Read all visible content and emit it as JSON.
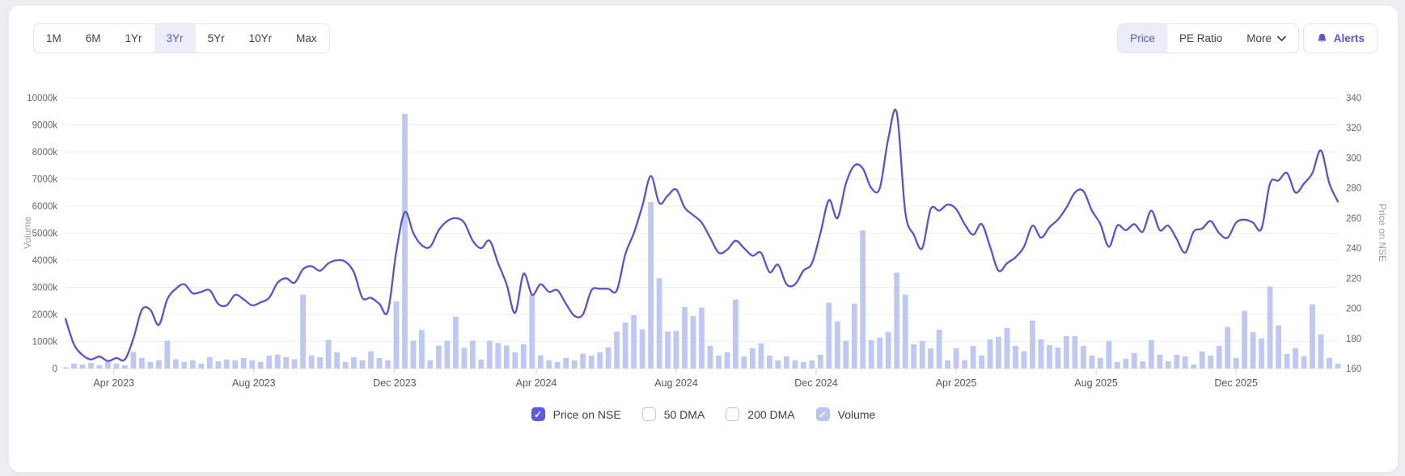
{
  "header": {
    "time_ranges": {
      "items": [
        "1M",
        "6M",
        "1Yr",
        "3Yr",
        "5Yr",
        "10Yr",
        "Max"
      ],
      "active": "3Yr"
    },
    "chart_tabs": {
      "items": [
        "Price",
        "PE Ratio",
        "More"
      ],
      "active": "Price"
    },
    "alerts_button": {
      "label": "Alerts",
      "icon": "bell"
    }
  },
  "legend": {
    "items": [
      {
        "label": "Price on NSE",
        "checked": true,
        "color": "#5f58e4"
      },
      {
        "label": "50 DMA",
        "checked": false,
        "color": ""
      },
      {
        "label": "200 DMA",
        "checked": false,
        "color": ""
      },
      {
        "label": "Volume",
        "checked": true,
        "color": "#b9c6f3"
      }
    ]
  },
  "chart_data": {
    "type": "line+bar",
    "title": "",
    "volume_axis": {
      "title": "Volume",
      "min": 0,
      "max": 10000,
      "tick_labels": [
        "0",
        "1000k",
        "2000k",
        "3000k",
        "4000k",
        "5000k",
        "6000k",
        "7000k",
        "8000k",
        "9000k",
        "10000k"
      ]
    },
    "price_axis": {
      "title": "Price on NSE",
      "min": 160,
      "max": 340,
      "tick_labels": [
        "160",
        "180",
        "200",
        "220",
        "240",
        "260",
        "280",
        "300",
        "320",
        "340"
      ]
    },
    "x_ticks": [
      {
        "label": "Apr 2023",
        "idx": 5.7
      },
      {
        "label": "Aug 2023",
        "idx": 22.2
      },
      {
        "label": "Dec 2023",
        "idx": 38.8
      },
      {
        "label": "Apr 2024",
        "idx": 55.5
      },
      {
        "label": "Aug 2024",
        "idx": 72
      },
      {
        "label": "Dec 2024",
        "idx": 88.5
      },
      {
        "label": "Apr 2025",
        "idx": 105
      },
      {
        "label": "Aug 2025",
        "idx": 121.5
      },
      {
        "label": "Dec 2025",
        "idx": 138
      }
    ],
    "x_range_note": "weekly points, Feb 2023 to Feb 2026",
    "price_series": [
      193,
      176,
      169,
      166,
      168,
      165,
      167,
      166,
      180,
      199,
      199,
      189,
      206,
      213,
      216,
      210,
      211,
      212,
      203,
      202,
      209,
      206,
      202,
      204,
      207,
      217,
      220,
      217,
      226,
      228,
      225,
      230,
      232,
      231,
      224,
      207,
      207,
      203,
      198,
      238,
      264,
      250,
      242,
      241,
      252,
      258,
      260,
      257,
      245,
      240,
      245,
      230,
      216,
      197,
      223,
      209,
      216,
      211,
      212,
      203,
      195,
      196,
      212,
      213,
      213,
      212,
      236,
      250,
      268,
      288,
      270,
      275,
      279,
      267,
      262,
      257,
      247,
      237,
      239,
      245,
      240,
      235,
      237,
      224,
      229,
      216,
      216,
      225,
      230,
      250,
      272,
      260,
      283,
      295,
      293,
      280,
      280,
      313,
      330,
      264,
      249,
      240,
      266,
      265,
      269,
      266,
      256,
      249,
      256,
      241,
      225,
      230,
      234,
      241,
      255,
      247,
      254,
      259,
      267,
      277,
      278,
      265,
      256,
      241,
      255,
      252,
      256,
      251,
      265,
      252,
      255,
      246,
      237,
      251,
      253,
      258,
      250,
      247,
      257,
      259,
      257,
      253,
      283,
      285,
      290,
      277,
      283,
      290,
      305,
      283,
      271
    ],
    "volume_series_k": [
      50,
      180,
      150,
      210,
      120,
      270,
      180,
      120,
      610,
      390,
      240,
      300,
      1030,
      340,
      240,
      300,
      180,
      420,
      270,
      330,
      300,
      390,
      300,
      240,
      480,
      520,
      420,
      340,
      2730,
      480,
      420,
      1060,
      600,
      240,
      420,
      300,
      640,
      390,
      300,
      2480,
      9400,
      1030,
      1420,
      300,
      850,
      1030,
      1910,
      760,
      1030,
      330,
      1030,
      940,
      850,
      600,
      900,
      2720,
      490,
      300,
      240,
      390,
      300,
      545,
      480,
      600,
      790,
      1360,
      1700,
      1970,
      1450,
      6150,
      3330,
      1360,
      1390,
      2270,
      1940,
      2250,
      840,
      480,
      600,
      2550,
      450,
      750,
      930,
      480,
      300,
      450,
      300,
      240,
      300,
      510,
      2430,
      1740,
      1020,
      2400,
      5100,
      1050,
      1140,
      1350,
      3540,
      2730,
      900,
      1020,
      750,
      1440,
      300,
      750,
      300,
      840,
      480,
      1080,
      1170,
      1500,
      840,
      640,
      1770,
      1080,
      870,
      780,
      1200,
      1200,
      840,
      480,
      390,
      1020,
      240,
      360,
      570,
      270,
      1050,
      510,
      270,
      510,
      450,
      150,
      630,
      480,
      840,
      1530,
      390,
      2130,
      1350,
      1110,
      3030,
      1590,
      540,
      750,
      450,
      2370,
      1260,
      400,
      180
    ],
    "colors": {
      "price_line": "#5b51d3",
      "volume_bar": "#bdc9f3",
      "grid": "#ededf2",
      "active_pill_bg": "#edecfb",
      "accent": "#5b55d6"
    },
    "legend_position": "bottom",
    "grid": true
  }
}
